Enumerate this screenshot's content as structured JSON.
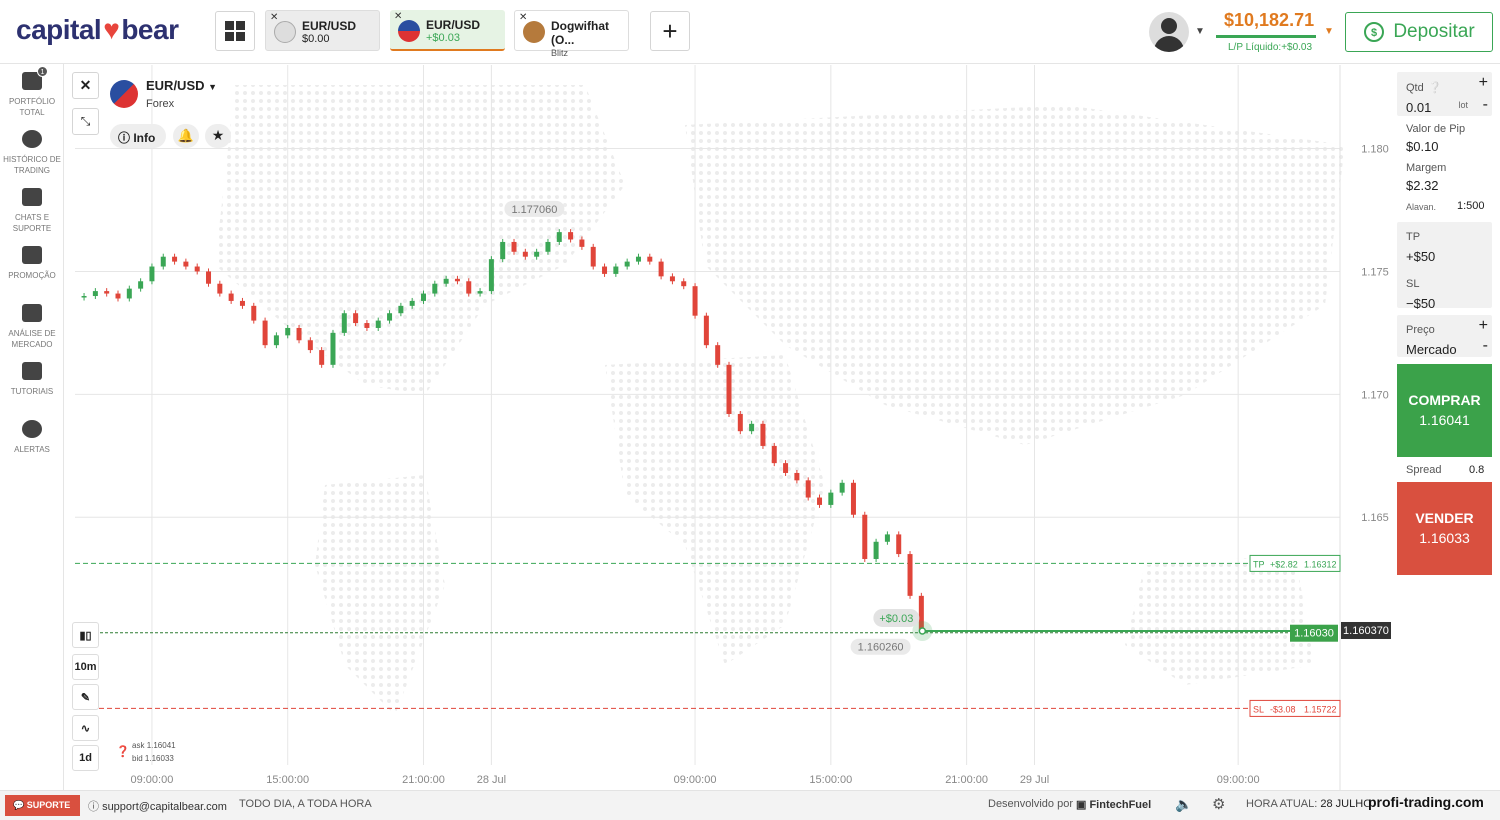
{
  "header": {
    "logo_left": "capital",
    "logo_right": "bear",
    "tabs": [
      {
        "name": "EUR/USD",
        "value": "$0.00"
      },
      {
        "name": "EUR/USD",
        "value": "+$0.03"
      },
      {
        "name": "Dogwifhat (O...",
        "value": "Blitz"
      }
    ],
    "balance": "$10,182.71",
    "pl": "L/P Líquido:+$0.03",
    "deposit": "Depositar"
  },
  "sidebar": [
    {
      "label": "PORTFÓLIO TOTAL",
      "badge": "1"
    },
    {
      "label": "HISTÓRICO DE TRADING"
    },
    {
      "label": "CHATS E SUPORTE"
    },
    {
      "label": "PROMOÇÃO"
    },
    {
      "label": "ANÁLISE DE MERCADO"
    },
    {
      "label": "TUTORIAIS"
    },
    {
      "label": "ALERTAS"
    }
  ],
  "instrument": {
    "symbol": "EUR/USD",
    "market": "Forex",
    "info": "Info"
  },
  "tools": {
    "interval": "10m",
    "range": "1d",
    "ask_label": "ask",
    "ask": "1.16041",
    "bid_label": "bid",
    "bid": "1.16033"
  },
  "chart_data": {
    "type": "candlestick",
    "up_color": "#3aa655",
    "down_color": "#e0453a",
    "grid": true,
    "xlim": [
      5.6,
      61.5
    ],
    "xticks": [
      {
        "value": 9,
        "label": "09:00:00"
      },
      {
        "value": 15,
        "label": "15:00:00"
      },
      {
        "value": 21,
        "label": "21:00:00"
      },
      {
        "value": 24,
        "label": "28 Jul"
      },
      {
        "value": 33,
        "label": "09:00:00"
      },
      {
        "value": 39,
        "label": "15:00:00"
      },
      {
        "value": 45,
        "label": "21:00:00"
      },
      {
        "value": 48,
        "label": "29 Jul"
      },
      {
        "value": 57,
        "label": "09:00:00"
      }
    ],
    "ylim": [
      1.1539,
      1.1834
    ],
    "yticks": [
      {
        "value": 1.18,
        "label": "1.180"
      },
      1.175,
      {
        "value": 1.17,
        "label": "1.170"
      },
      1.165
    ],
    "x": [
      6,
      6.5,
      7,
      7.5,
      8,
      8.5,
      9,
      9.5,
      10,
      10.5,
      11,
      11.5,
      12,
      12.5,
      13,
      13.5,
      14,
      14.5,
      15,
      15.5,
      16,
      16.5,
      17,
      17.5,
      18,
      18.5,
      19,
      19.5,
      20,
      20.5,
      21,
      21.5,
      22,
      22.5,
      23,
      23.5,
      24,
      24.5,
      25,
      25.5,
      26,
      26.5,
      27,
      27.5,
      28,
      28.5,
      29,
      29.5,
      30,
      30.5,
      31,
      31.5,
      32,
      32.5,
      33,
      33.5,
      34,
      34.5,
      35,
      35.5,
      36,
      36.5,
      37,
      37.5,
      38,
      38.5,
      39,
      39.5,
      40,
      40.5,
      41,
      41.5,
      42,
      42.5,
      43
    ],
    "values": [
      1.174,
      1.1742,
      1.1741,
      1.1739,
      1.1743,
      1.1746,
      1.1752,
      1.1756,
      1.1754,
      1.1752,
      1.175,
      1.1745,
      1.1741,
      1.1738,
      1.1736,
      1.173,
      1.172,
      1.1724,
      1.1727,
      1.1722,
      1.1718,
      1.1712,
      1.1725,
      1.1733,
      1.1729,
      1.1727,
      1.173,
      1.1733,
      1.1736,
      1.1738,
      1.1741,
      1.1745,
      1.1747,
      1.1746,
      1.1741,
      1.1742,
      1.1755,
      1.1762,
      1.1758,
      1.1756,
      1.1758,
      1.1762,
      1.1766,
      1.1763,
      1.176,
      1.1752,
      1.1749,
      1.1752,
      1.1754,
      1.1756,
      1.1754,
      1.1748,
      1.1746,
      1.1744,
      1.1732,
      1.172,
      1.1712,
      1.1692,
      1.1685,
      1.1688,
      1.1679,
      1.1672,
      1.1668,
      1.1665,
      1.1658,
      1.1655,
      1.166,
      1.1664,
      1.1651,
      1.1633,
      1.164,
      1.1643,
      1.1635,
      1.1618,
      1.1604
    ],
    "annotations": [
      {
        "x": 25.9,
        "value": 1.17706,
        "label": "1.177060"
      },
      {
        "x": 41.2,
        "value": 1.16026,
        "label": "1.160260"
      }
    ],
    "position_pnl": "+$0.03",
    "tp": {
      "name": "TP",
      "pnl": "+$2.82",
      "value": 1.16312
    },
    "sl": {
      "name": "SL",
      "pnl": "-$3.08",
      "value": 1.15722
    },
    "entry": {
      "value": 1.1603,
      "label": "1.16030"
    },
    "current": {
      "value": 1.16037,
      "label": "1.160370"
    }
  },
  "panel": {
    "qty_label": "Qtd",
    "qty": "0.01",
    "lot": "lot",
    "pip_label": "Valor de Pip",
    "pip": "$0.10",
    "margin_label": "Margem",
    "margin": "$2.32",
    "leverage_label": "Alavan.",
    "leverage": "1:500",
    "tp_label": "TP",
    "tp": "+$50",
    "sl_label": "SL",
    "sl": "−$50",
    "price_label": "Preço",
    "price": "Mercado",
    "buy": "COMPRAR",
    "buy_price": "1.16041",
    "spread_label": "Spread",
    "spread": "0.8",
    "sell": "VENDER",
    "sell_price": "1.16033"
  },
  "footer": {
    "support": "SUPORTE",
    "email": "support@capitalbear.com",
    "hours": "TODO DIA, A TODA HORA",
    "dev": "Desenvolvido por",
    "dev_name": "FintechFuel",
    "time_label": "HORA ATUAL:",
    "time": "28 JULHO",
    "watermark": "profi-trading.com"
  }
}
